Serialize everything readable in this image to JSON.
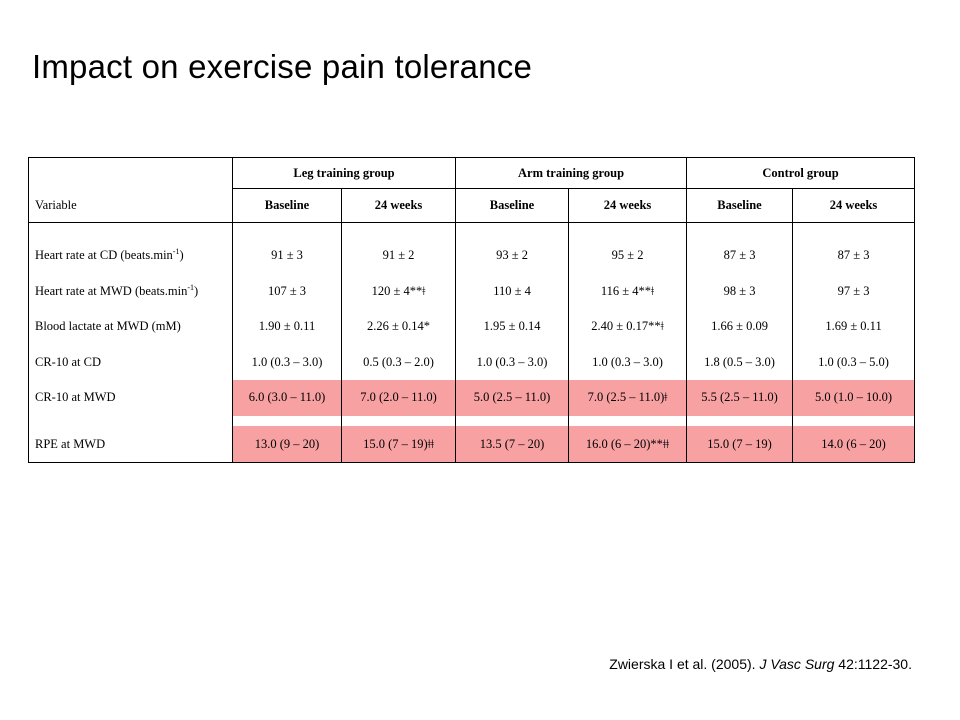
{
  "slide": {
    "title": "Impact on exercise pain tolerance"
  },
  "table": {
    "groups": [
      "Leg training group",
      "Arm training group",
      "Control group"
    ],
    "variable_header": "Variable",
    "subheaders": [
      "Baseline",
      "24 weeks",
      "Baseline",
      "24 weeks",
      "Baseline",
      "24 weeks"
    ],
    "highlight_color": "#f7a1a3",
    "rows": [
      {
        "label": "Heart rate at CD (beats.min",
        "label_sup": "-1",
        "label_end": ")",
        "values": [
          "91 ± 3",
          "91 ± 2",
          "93 ± 2",
          "95 ± 2",
          "87 ± 3",
          "87 ± 3"
        ]
      },
      {
        "label": "Heart rate at MWD (beats.min",
        "label_sup": "-1",
        "label_end": ")",
        "values": [
          "107 ± 3",
          "120 ± 4**ǂ",
          "110 ± 4",
          "116 ± 4**ǂ",
          "98 ± 3",
          "97 ± 3"
        ]
      },
      {
        "label": "Blood lactate at MWD (mM)",
        "values": [
          "1.90 ± 0.11",
          "2.26 ± 0.14*",
          "1.95 ± 0.14",
          "2.40 ± 0.17**ǂ",
          "1.66 ± 0.09",
          "1.69 ± 0.11"
        ]
      },
      {
        "label": "CR-10 at CD",
        "values": [
          "1.0 (0.3 – 3.0)",
          "0.5 (0.3 – 2.0)",
          "1.0 (0.3 – 3.0)",
          "1.0 (0.3 – 3.0)",
          "1.8 (0.5 – 3.0)",
          "1.0 (0.3 – 5.0)"
        ]
      },
      {
        "label": "CR-10 at MWD",
        "values": [
          "6.0 (3.0 – 11.0)",
          "7.0 (2.0 – 11.0)",
          "5.0 (2.5 – 11.0)",
          "7.0 (2.5 – 11.0)ǂ",
          "5.5 (2.5 – 11.0)",
          "5.0 (1.0 – 10.0)"
        ]
      },
      {
        "label": "RPE at MWD",
        "values": [
          "13.0 (9 – 20)",
          "15.0 (7 – 19)ǂǂ",
          "13.5 (7 – 20)",
          "16.0 (6 – 20)**ǂǂ",
          "15.0 (7 – 19)",
          "14.0 (6 – 20)"
        ]
      }
    ]
  },
  "citation": {
    "authors": "Zwierska I et al. (2005). ",
    "journal": "J Vasc Surg",
    "ref": " 42:1122-30."
  }
}
